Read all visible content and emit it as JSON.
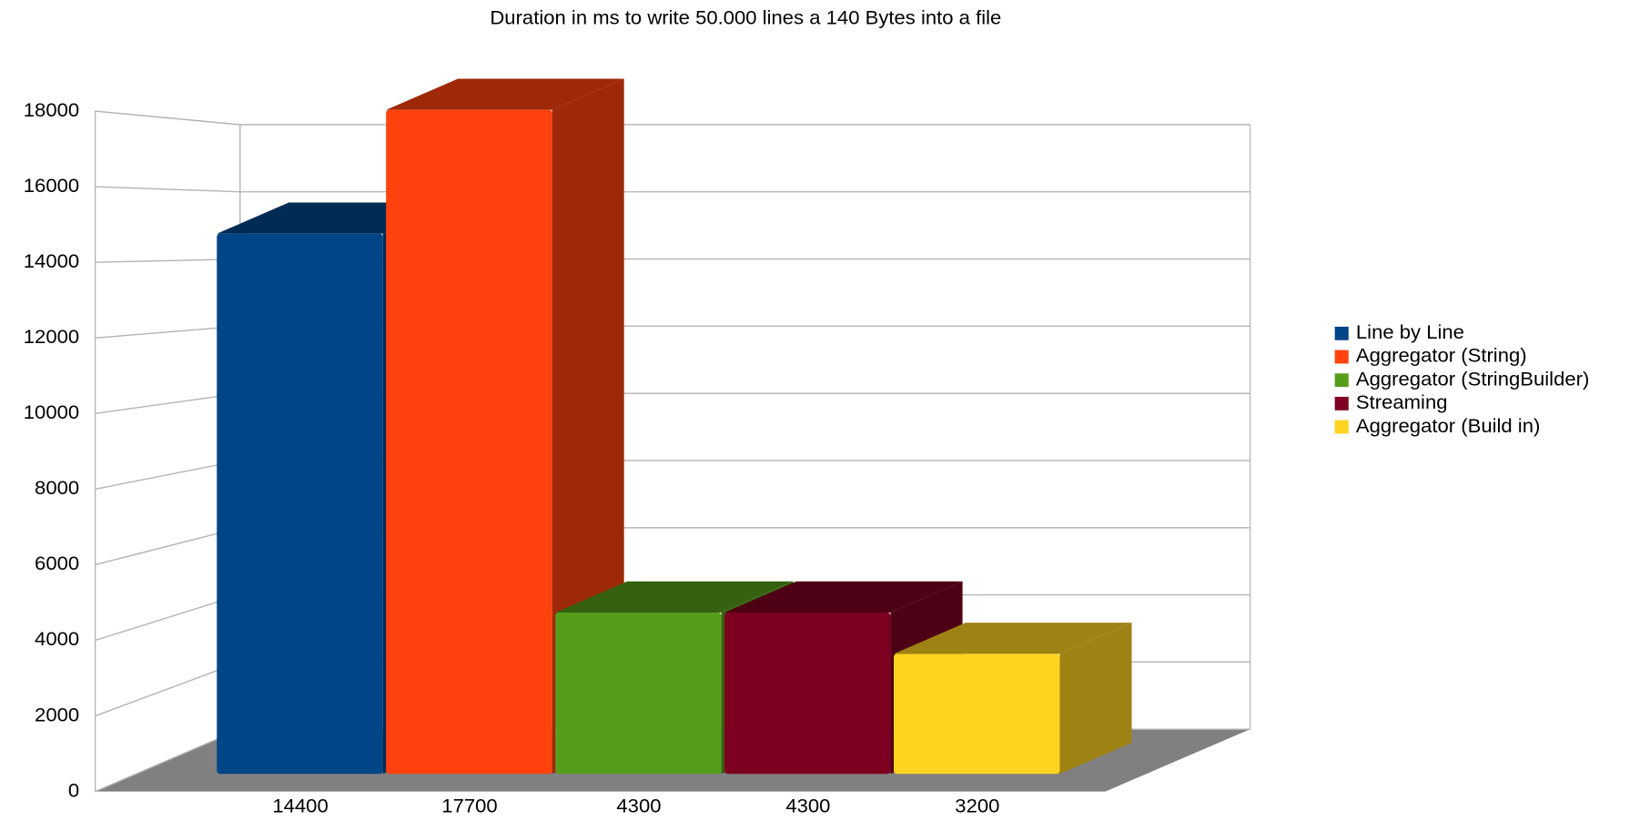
{
  "chart_data": {
    "type": "bar3d",
    "title": "Duration in ms to write 50.000 lines a 140 Bytes into a file",
    "categories": [
      "14400",
      "17700",
      "4300",
      "4300",
      "3200"
    ],
    "series": [
      {
        "name": "Line by Line",
        "color": "#004586",
        "values": [
          14400,
          null,
          null,
          null,
          null
        ]
      },
      {
        "name": "Aggregator (String)",
        "color": "#ff420e",
        "values": [
          null,
          17700,
          null,
          null,
          null
        ]
      },
      {
        "name": "Aggregator (StringBuilder)",
        "color": "#579d1c",
        "values": [
          null,
          null,
          4300,
          null,
          null
        ]
      },
      {
        "name": "Streaming",
        "color": "#7e0021",
        "values": [
          null,
          null,
          null,
          4300,
          null
        ]
      },
      {
        "name": "Aggregator (Build in)",
        "color": "#ffd320",
        "values": [
          null,
          null,
          null,
          null,
          3200
        ]
      }
    ],
    "ylim": [
      0,
      18000
    ],
    "yticks": [
      0,
      2000,
      4000,
      6000,
      8000,
      10000,
      12000,
      14000,
      16000,
      18000
    ],
    "grid": true,
    "legend": "right"
  }
}
